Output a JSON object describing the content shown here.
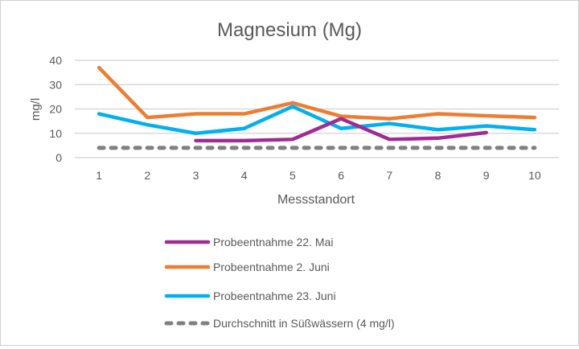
{
  "chart_data": {
    "type": "line",
    "title": "Magnesium (Mg)",
    "xlabel": "Messstandort",
    "ylabel": "mg/l",
    "categories": [
      "1",
      "2",
      "3",
      "4",
      "5",
      "6",
      "7",
      "8",
      "9",
      "10"
    ],
    "ylim": [
      0,
      40
    ],
    "yticks": [
      "0",
      "10",
      "20",
      "30",
      "40"
    ],
    "grid": true,
    "legend_placement": "bottom",
    "series": [
      {
        "name": "Probeentnahme 22. Mai",
        "color": "#A02B93",
        "dashed": false,
        "values": [
          null,
          null,
          7,
          7,
          7.5,
          16,
          7.5,
          8,
          10.3,
          null
        ]
      },
      {
        "name": "Probeentnahme 2. Juni",
        "color": "#ED7D31",
        "dashed": false,
        "values": [
          37,
          16.5,
          18,
          18,
          22.5,
          17,
          16,
          18,
          17.2,
          16.5
        ]
      },
      {
        "name": "Probeentnahme 23. Juni",
        "color": "#00B0F0",
        "dashed": false,
        "values": [
          18,
          13.5,
          10,
          12,
          21,
          12,
          14,
          11.5,
          13,
          11.5
        ]
      },
      {
        "name": "Durchschnitt in Süßwässern (4 mg/l)",
        "color": "#808080",
        "dashed": true,
        "values": [
          4,
          4,
          4,
          4,
          4,
          4,
          4,
          4,
          4,
          4
        ]
      }
    ]
  }
}
